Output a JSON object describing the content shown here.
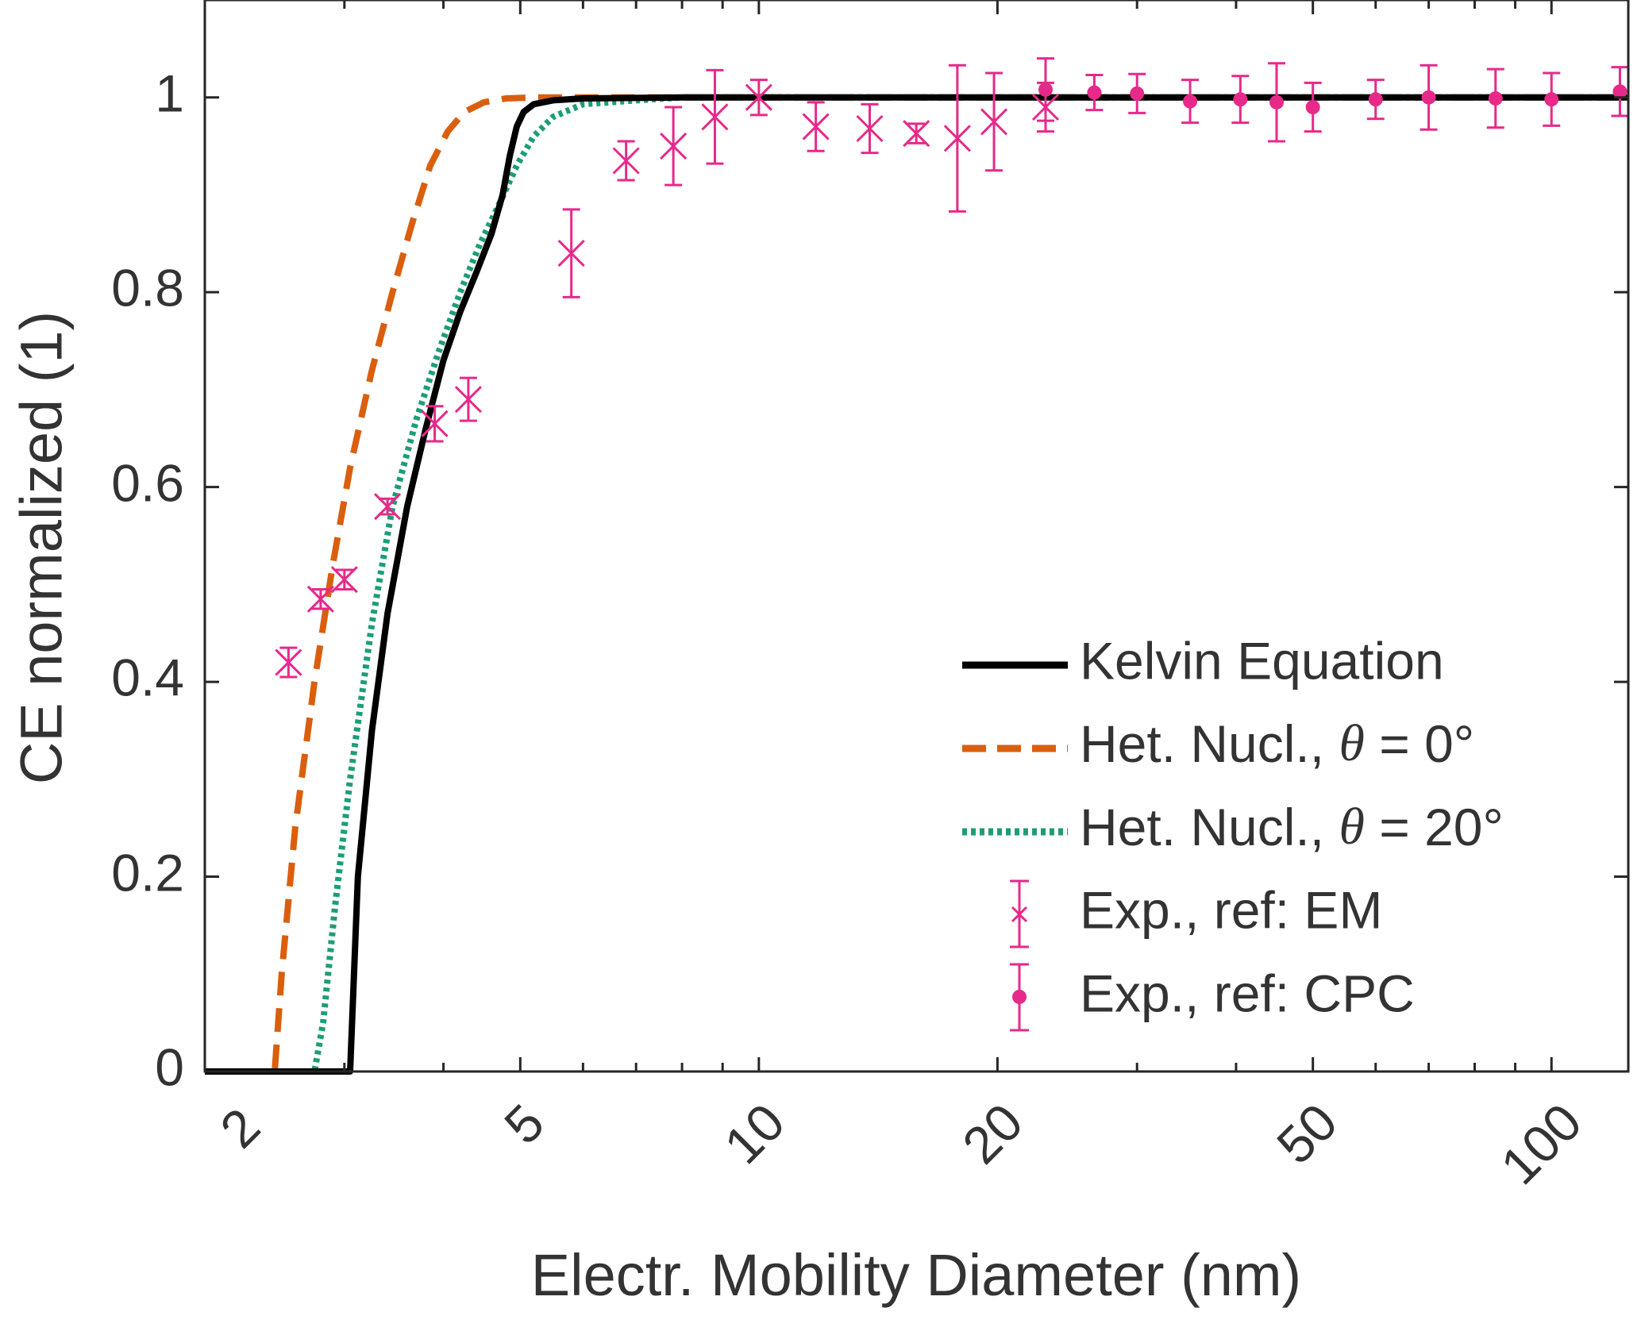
{
  "chart_data": {
    "type": "line",
    "title": "",
    "xlabel": "Electr. Mobility Diameter (nm)",
    "ylabel": "CE normalized (1)",
    "xscale": "log",
    "xlim": [
      2,
      125
    ],
    "ylim": [
      0,
      1.1
    ],
    "xticks": [
      2,
      5,
      10,
      20,
      50,
      100
    ],
    "xtick_labels": [
      "2",
      "5",
      "10",
      "20",
      "50",
      "100"
    ],
    "yticks": [
      0,
      0.2,
      0.4,
      0.6,
      0.8,
      1
    ],
    "ytick_labels": [
      "0",
      "0.2",
      "0.4",
      "0.6",
      "0.8",
      "1"
    ],
    "grid": false,
    "legend_position": "bottom-right",
    "series": [
      {
        "name": "Kelvin Equation",
        "style": "solid",
        "color": "#000000",
        "x": [
          2,
          3.05,
          3.12,
          3.25,
          3.4,
          3.6,
          3.8,
          4.0,
          4.2,
          4.4,
          4.6,
          4.75,
          4.85,
          4.95,
          5.05,
          5.2,
          5.5,
          6,
          8,
          125
        ],
        "y": [
          0,
          0,
          0.2,
          0.35,
          0.47,
          0.58,
          0.66,
          0.73,
          0.78,
          0.82,
          0.86,
          0.9,
          0.94,
          0.97,
          0.985,
          0.993,
          0.997,
          0.999,
          1,
          1
        ]
      },
      {
        "name": "Het. Nucl., θ = 0°",
        "label_prefix": "Het. Nucl., ",
        "label_symbol": "θ",
        "label_suffix": " = 0°",
        "style": "dashed",
        "color": "#D95F0E",
        "x": [
          2,
          2.45,
          2.5,
          2.6,
          2.75,
          2.9,
          3.05,
          3.25,
          3.45,
          3.65,
          3.85,
          4.05,
          4.25,
          4.5,
          4.8,
          5.2,
          6,
          125
        ],
        "y": [
          0,
          0,
          0.1,
          0.25,
          0.4,
          0.52,
          0.62,
          0.72,
          0.8,
          0.87,
          0.93,
          0.965,
          0.985,
          0.995,
          0.999,
          1,
          1,
          1
        ]
      },
      {
        "name": "Het. Nucl., θ = 20°",
        "label_prefix": "Het. Nucl., ",
        "label_symbol": "θ",
        "label_suffix": " = 20°",
        "style": "dotted",
        "color": "#1B9E77",
        "x": [
          2,
          2.75,
          2.82,
          2.92,
          3.05,
          3.25,
          3.45,
          3.7,
          3.95,
          4.2,
          4.45,
          4.7,
          4.95,
          5.2,
          5.5,
          6,
          7,
          8,
          125
        ],
        "y": [
          0,
          0,
          0.05,
          0.17,
          0.3,
          0.46,
          0.58,
          0.67,
          0.74,
          0.8,
          0.85,
          0.89,
          0.93,
          0.96,
          0.98,
          0.993,
          0.997,
          1,
          1
        ]
      },
      {
        "name": "Exp., ref: EM",
        "style": "markers-x",
        "color": "#E7298A",
        "x": [
          2.55,
          2.8,
          3.0,
          3.4,
          3.9,
          4.3,
          5.8,
          6.8,
          7.8,
          8.8,
          10,
          11.8,
          13.8,
          15.8,
          17.8,
          19.8,
          23
        ],
        "y": [
          0.42,
          0.485,
          0.505,
          0.58,
          0.665,
          0.69,
          0.84,
          0.935,
          0.95,
          0.98,
          1.0,
          0.97,
          0.968,
          0.963,
          0.958,
          0.975,
          0.99
        ],
        "err": [
          0.015,
          0.01,
          0.01,
          0.008,
          0.018,
          0.022,
          0.045,
          0.02,
          0.04,
          0.048,
          0.018,
          0.025,
          0.025,
          0.01,
          0.075,
          0.05,
          0.025
        ]
      },
      {
        "name": "Exp., ref: CPC",
        "style": "markers-dot",
        "color": "#E7298A",
        "x": [
          23,
          26.5,
          30,
          35,
          40.5,
          45,
          50,
          60,
          70,
          85,
          100,
          122
        ],
        "y": [
          1.008,
          1.005,
          1.004,
          0.996,
          0.998,
          0.995,
          0.99,
          0.998,
          1.0,
          0.999,
          0.998,
          1.006
        ],
        "err": [
          0.032,
          0.018,
          0.02,
          0.022,
          0.024,
          0.04,
          0.025,
          0.02,
          0.033,
          0.03,
          0.027,
          0.025
        ]
      }
    ]
  }
}
